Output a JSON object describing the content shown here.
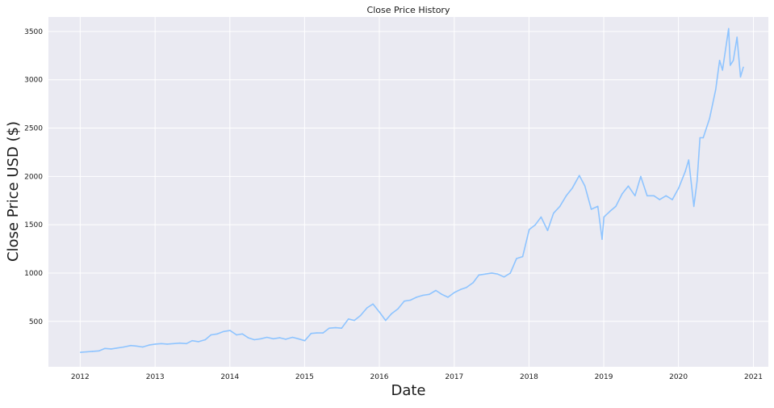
{
  "chart_data": {
    "type": "line",
    "title": "Close Price History",
    "xlabel": "Date",
    "ylabel": "Close Price USD ($)",
    "x_ticks": [
      "2012",
      "2013",
      "2014",
      "2015",
      "2016",
      "2017",
      "2018",
      "2019",
      "2020",
      "2021"
    ],
    "y_ticks": [
      500,
      1000,
      1500,
      2000,
      2500,
      3000,
      3500
    ],
    "xlim": [
      "2011-07-30",
      "2021-03-15"
    ],
    "ylim": [
      30,
      3650
    ],
    "grid": true,
    "colors": {
      "background": "#eaeaf2",
      "grid": "#ffffff",
      "line": "#8ec4ff"
    },
    "series": [
      {
        "x": [
          "2012-01-03",
          "2012-02-01",
          "2012-03-01",
          "2012-04-02",
          "2012-05-01",
          "2012-06-01",
          "2012-07-02",
          "2012-08-01",
          "2012-09-04",
          "2012-10-01",
          "2012-11-01",
          "2012-12-03",
          "2013-01-02",
          "2013-02-01",
          "2013-03-01",
          "2013-04-01",
          "2013-05-01",
          "2013-06-03",
          "2013-07-01",
          "2013-08-01",
          "2013-09-03",
          "2013-10-01",
          "2013-11-01",
          "2013-12-02",
          "2014-01-02",
          "2014-02-03",
          "2014-03-03",
          "2014-04-01",
          "2014-05-01",
          "2014-06-02",
          "2014-07-01",
          "2014-08-01",
          "2014-09-02",
          "2014-10-01",
          "2014-11-03",
          "2014-12-01",
          "2015-01-02",
          "2015-02-02",
          "2015-03-02",
          "2015-04-01",
          "2015-05-01",
          "2015-06-01",
          "2015-07-01",
          "2015-08-03",
          "2015-09-01",
          "2015-10-01",
          "2015-11-02",
          "2015-12-01",
          "2016-01-04",
          "2016-02-01",
          "2016-03-01",
          "2016-04-01",
          "2016-05-02",
          "2016-06-01",
          "2016-07-01",
          "2016-08-01",
          "2016-09-01",
          "2016-10-03",
          "2016-11-01",
          "2016-12-01",
          "2017-01-03",
          "2017-02-01",
          "2017-03-01",
          "2017-04-03",
          "2017-05-01",
          "2017-06-01",
          "2017-07-03",
          "2017-08-01",
          "2017-09-01",
          "2017-10-02",
          "2017-11-01",
          "2017-12-01",
          "2018-01-02",
          "2018-02-01",
          "2018-03-01",
          "2018-04-02",
          "2018-05-01",
          "2018-06-01",
          "2018-07-02",
          "2018-08-01",
          "2018-09-04",
          "2018-10-01",
          "2018-11-01",
          "2018-12-03",
          "2018-12-24",
          "2019-01-02",
          "2019-02-01",
          "2019-03-01",
          "2019-04-01",
          "2019-05-01",
          "2019-06-03",
          "2019-07-01",
          "2019-08-01",
          "2019-09-03",
          "2019-10-01",
          "2019-11-01",
          "2019-12-02",
          "2020-01-02",
          "2020-02-03",
          "2020-02-20",
          "2020-03-16",
          "2020-04-01",
          "2020-04-15",
          "2020-05-01",
          "2020-06-01",
          "2020-07-01",
          "2020-07-20",
          "2020-08-03",
          "2020-09-02",
          "2020-09-10",
          "2020-09-25",
          "2020-10-13",
          "2020-10-30",
          "2020-11-13"
        ],
        "values": [
          180,
          185,
          190,
          195,
          220,
          215,
          225,
          235,
          250,
          245,
          235,
          255,
          265,
          270,
          265,
          270,
          275,
          270,
          300,
          290,
          310,
          360,
          370,
          395,
          405,
          360,
          370,
          330,
          310,
          320,
          335,
          320,
          330,
          315,
          335,
          320,
          300,
          375,
          380,
          380,
          430,
          435,
          430,
          525,
          510,
          560,
          640,
          680,
          590,
          510,
          580,
          630,
          710,
          720,
          750,
          770,
          780,
          820,
          780,
          750,
          800,
          830,
          850,
          900,
          980,
          990,
          1000,
          990,
          960,
          1000,
          1150,
          1170,
          1450,
          1500,
          1580,
          1440,
          1620,
          1690,
          1800,
          1880,
          2010,
          1900,
          1660,
          1690,
          1350,
          1580,
          1640,
          1690,
          1820,
          1900,
          1800,
          2000,
          1800,
          1800,
          1760,
          1800,
          1760,
          1880,
          2050,
          2170,
          1690,
          1950,
          2400,
          2400,
          2600,
          2900,
          3200,
          3100,
          3530,
          3150,
          3200,
          3440,
          3030,
          3130
        ]
      }
    ]
  }
}
